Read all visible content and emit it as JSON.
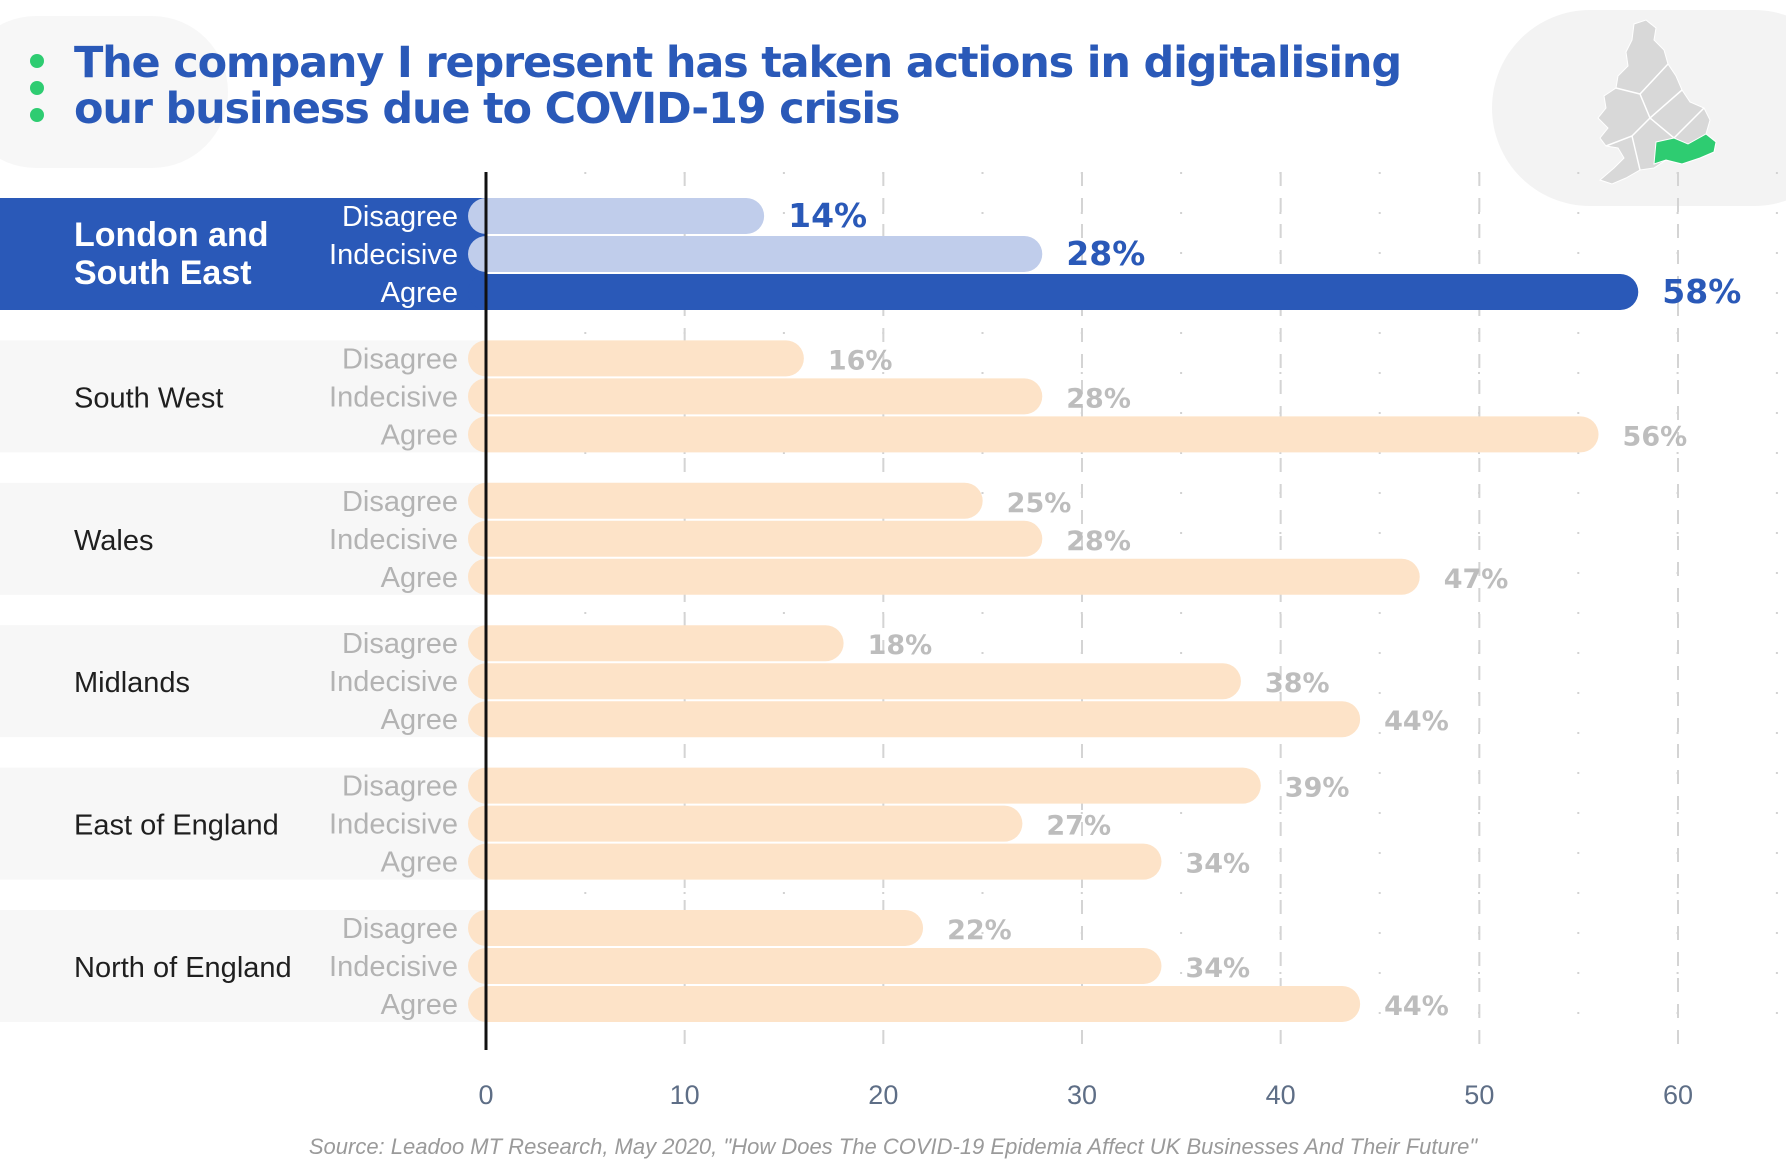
{
  "title": {
    "line1": "The company I represent has taken actions in digitalising",
    "line2": "our business due to COVID-19 crisis"
  },
  "source": "Source: Leadoo MT Research, May 2020, \"How Does The COVID-19 Epidemia Affect UK Businesses And Their Future\"",
  "icons": [
    "bullet-dot-icon",
    "uk-map-icon"
  ],
  "colors": {
    "title": "#2a59b8",
    "highlight_band": "#2a59b8",
    "highlight_bar_agree": "#2a59b8",
    "highlight_bar_other": "#c0cdeb",
    "bar": "#fde3c8",
    "value_label": "#bdbdbd",
    "band": "#f7f7f7",
    "map_highlight": "#2ecc71"
  },
  "chart_data": {
    "type": "bar",
    "orientation": "horizontal",
    "title": "The company I represent has taken actions in digitalising our business due to COVID-19 crisis",
    "xlabel": "",
    "ylabel": "",
    "xlim": [
      0,
      60
    ],
    "xticks": [
      0,
      10,
      20,
      30,
      40,
      50,
      60
    ],
    "grid": true,
    "value_suffix": "%",
    "highlight_group": "London and South East",
    "groups": [
      {
        "name": "London and South East",
        "lines": [
          "London and",
          "South East"
        ],
        "bars": [
          {
            "label": "Disagree",
            "value": 14
          },
          {
            "label": "Indecisive",
            "value": 28
          },
          {
            "label": "Agree",
            "value": 58
          }
        ]
      },
      {
        "name": "South West",
        "lines": [
          "South West"
        ],
        "bars": [
          {
            "label": "Disagree",
            "value": 16
          },
          {
            "label": "Indecisive",
            "value": 28
          },
          {
            "label": "Agree",
            "value": 56
          }
        ]
      },
      {
        "name": "Wales",
        "lines": [
          "Wales"
        ],
        "bars": [
          {
            "label": "Disagree",
            "value": 25
          },
          {
            "label": "Indecisive",
            "value": 28
          },
          {
            "label": "Agree",
            "value": 47
          }
        ]
      },
      {
        "name": "Midlands",
        "lines": [
          "Midlands"
        ],
        "bars": [
          {
            "label": "Disagree",
            "value": 18
          },
          {
            "label": "Indecisive",
            "value": 38
          },
          {
            "label": "Agree",
            "value": 44
          }
        ]
      },
      {
        "name": "East of England",
        "lines": [
          "East of England"
        ],
        "bars": [
          {
            "label": "Disagree",
            "value": 39
          },
          {
            "label": "Indecisive",
            "value": 27
          },
          {
            "label": "Agree",
            "value": 34
          }
        ]
      },
      {
        "name": "North of England",
        "lines": [
          "North of England"
        ],
        "bars": [
          {
            "label": "Disagree",
            "value": 22
          },
          {
            "label": "Indecisive",
            "value": 34
          },
          {
            "label": "Agree",
            "value": 44
          }
        ]
      }
    ]
  }
}
